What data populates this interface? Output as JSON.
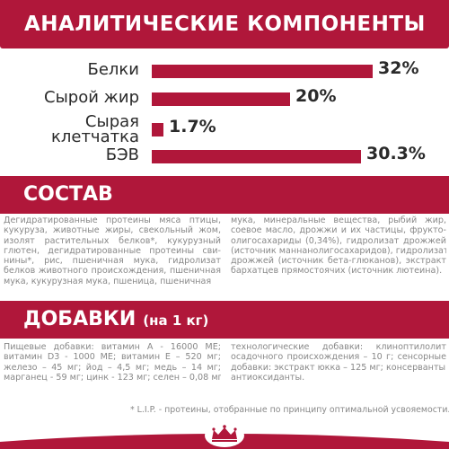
{
  "analytics": {
    "title": "АНАЛИТИЧЕСКИЕ КОМПОНЕНТЫ",
    "items": [
      {
        "label_lines": [
          "Белки"
        ],
        "value": 32,
        "value_label": "32%"
      },
      {
        "label_lines": [
          "Сырой жир"
        ],
        "value": 20,
        "value_label": "20%"
      },
      {
        "label_lines": [
          "Сырая",
          "клетчатка"
        ],
        "value": 1.7,
        "value_label": "1.7%"
      },
      {
        "label_lines": [
          "БЭВ"
        ],
        "value": 30.3,
        "value_label": "30.3%"
      }
    ],
    "bar_color": "#b0173a"
  },
  "composition": {
    "title": "СОСТАВ",
    "left_lines": [
      "Дегидратированные протеины мяса птицы,",
      "кукуруза, животные жиры, свекольный жом,",
      "изолят растительных белков*, кукурузный",
      "глютен, дегидратированные протеины сви-",
      "нины*, рис, пшеничная мука, гидролизат",
      "белков животного происхождения, пшеничная",
      "мука, кукурузная мука, пшеница, пшеничная"
    ],
    "right_lines": [
      "мука, минеральные вещества, рыбий жир,",
      "соевое масло, дрожжи и их частицы, фрукто-",
      "олигосахариды (0,34%), гидролизат дрожжей",
      "(источник маннанолигосахаридов), гидролизат",
      "дрожжей (источник бета-глюканов), экстракт",
      "бархатцев прямостоячих (источник лютеина)."
    ]
  },
  "additives": {
    "title": "ДОБАВКИ",
    "subtitle": "(на 1 кг)",
    "left_lines": [
      "Пищевые добавки: витамин А - 16000 МЕ;",
      "витамин D3 - 1000 МЕ; витамин Е – 520 мг;",
      "железо – 45 мг; йод – 4,5 мг; медь – 14 мг;",
      "марганец - 59 мг; цинк - 123 мг; селен – 0,08 мг;"
    ],
    "right_lines": [
      "технологические добавки: клиноптилолит",
      "осадочного происхождения – 10 г; сенсорные",
      "добавки: экстракт юкка – 125 мг; консерванты:",
      "антиоксиданты."
    ]
  },
  "footnote": "* L.I.P. - протеины, отобранные по принципу оптимальной усвояемости.",
  "brand": {
    "primary_color": "#b0173a",
    "logo_icon": "crown-icon"
  }
}
